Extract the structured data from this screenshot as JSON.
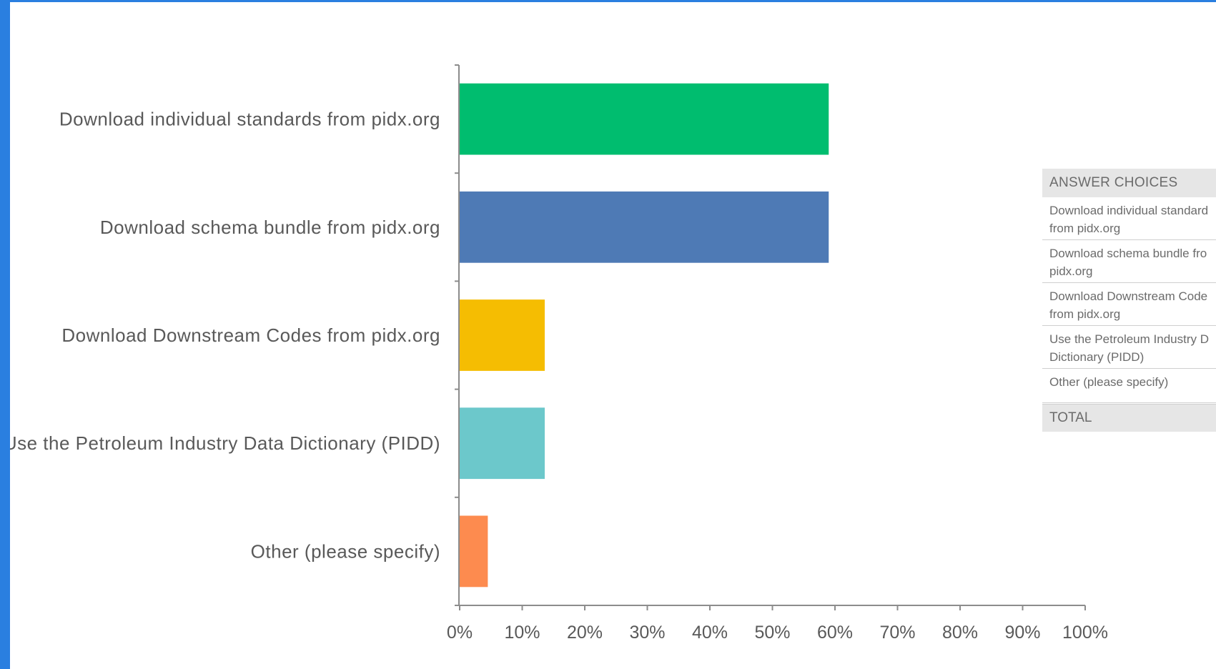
{
  "chart_data": {
    "type": "bar",
    "orientation": "horizontal",
    "categories": [
      "Download individual standards from pidx.org",
      "Download schema bundle from pidx.org",
      "Download Downstream Codes from pidx.org",
      "Use the Petroleum Industry Data Dictionary (PIDD)",
      "Other (please specify)"
    ],
    "values": [
      59,
      59,
      13.6,
      13.6,
      4.5
    ],
    "colors": [
      "#00bd6f",
      "#4e7ab5",
      "#f5bd02",
      "#6cc8cb",
      "#fd8b4f"
    ],
    "xlim": [
      0,
      100
    ],
    "x_ticks": [
      "0%",
      "10%",
      "20%",
      "30%",
      "40%",
      "50%",
      "60%",
      "70%",
      "80%",
      "90%",
      "100%"
    ],
    "grid": false
  },
  "answer_table": {
    "header": "ANSWER CHOICES",
    "rows": [
      [
        "Download individual standard",
        "from pidx.org"
      ],
      [
        "Download schema bundle fro",
        "pidx.org"
      ],
      [
        "Download Downstream Code",
        "from pidx.org"
      ],
      [
        "Use the Petroleum Industry D",
        "Dictionary (PIDD)"
      ],
      [
        "Other (please specify)"
      ]
    ],
    "total": "TOTAL"
  }
}
